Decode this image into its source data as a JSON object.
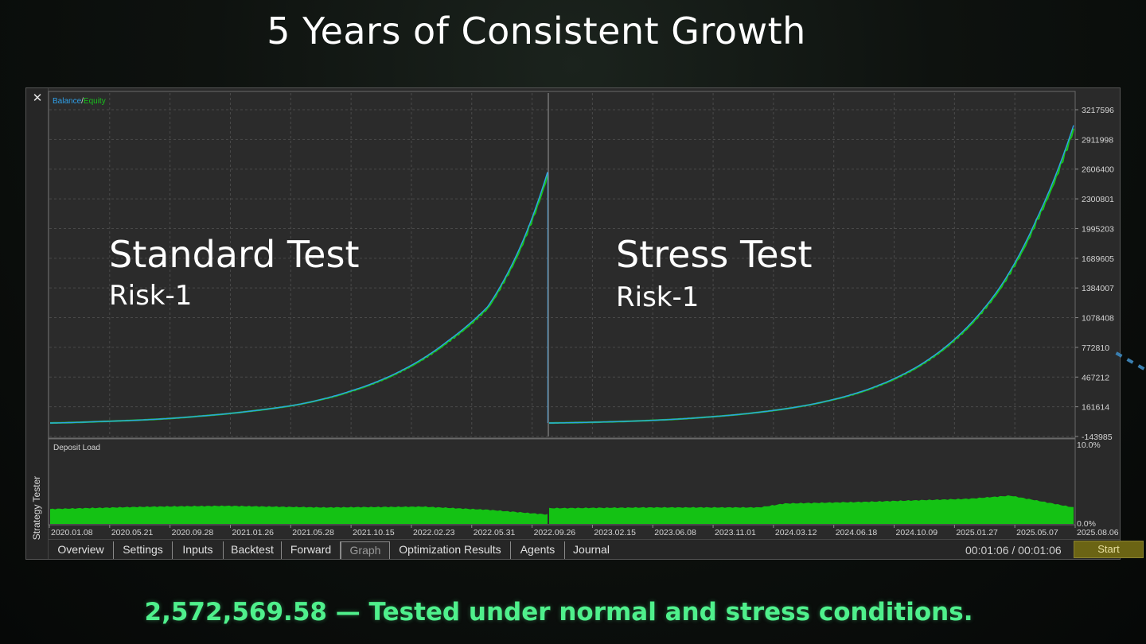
{
  "title": "5 Years of Consistent Growth",
  "footer": "2,572,569.58 — Tested under normal and stress conditions.",
  "window": {
    "side_label": "Strategy Tester",
    "close_icon": "close-icon"
  },
  "chart_data": {
    "type": "line",
    "legend": {
      "balance": "Balance",
      "separator": "/",
      "equity": "Equity"
    },
    "colors": {
      "balance": "#2f9fe8",
      "equity": "#19c11c",
      "background": "#2b2b2b",
      "grid": "#555555",
      "text": "#d4d4d4"
    },
    "panels": [
      {
        "title": "Standard Test",
        "subtitle": "Risk-1",
        "points": [
          [
            0,
            10000
          ],
          [
            0.1,
            25000
          ],
          [
            0.2,
            45000
          ],
          [
            0.3,
            80000
          ],
          [
            0.4,
            130000
          ],
          [
            0.5,
            200000
          ],
          [
            0.6,
            330000
          ],
          [
            0.7,
            530000
          ],
          [
            0.8,
            850000
          ],
          [
            0.88,
            1200000
          ],
          [
            0.94,
            1750000
          ],
          [
            1.0,
            2572569.58
          ]
        ]
      },
      {
        "title": "Stress Test",
        "subtitle": "Risk-1",
        "points": [
          [
            0,
            10000
          ],
          [
            0.1,
            20000
          ],
          [
            0.2,
            38000
          ],
          [
            0.3,
            70000
          ],
          [
            0.4,
            120000
          ],
          [
            0.5,
            200000
          ],
          [
            0.6,
            340000
          ],
          [
            0.7,
            580000
          ],
          [
            0.78,
            900000
          ],
          [
            0.86,
            1400000
          ],
          [
            0.93,
            2100000
          ],
          [
            1.0,
            3050000
          ]
        ]
      }
    ],
    "y_ticks": [
      "3217596",
      "2911998",
      "2606400",
      "2300801",
      "1995203",
      "1689605",
      "1384007",
      "1078408",
      "772810",
      "467212",
      "161614",
      "-143985"
    ],
    "y_range": [
      -143985,
      3217596
    ],
    "x_ticks": [
      "2020.01.08",
      "2020.05.21",
      "2020.09.28",
      "2021.01.26",
      "2021.05.28",
      "2021.10.15",
      "2022.02.23",
      "2022.05.31",
      "2022.09.26",
      "2023.02.15",
      "2023.06.08",
      "2023.11.01",
      "2024.03.12",
      "2024.06.18",
      "2024.10.09",
      "2025.01.27",
      "2025.05.07",
      "2025.08.06"
    ],
    "deposit_load": {
      "label": "Deposit Load",
      "y_ticks": [
        "10.0%",
        "0.0%"
      ],
      "y_range": [
        0,
        10
      ],
      "series": [
        {
          "name": "Standard Test",
          "points": [
            [
              0,
              1.9
            ],
            [
              0.2,
              2.2
            ],
            [
              0.35,
              2.3
            ],
            [
              0.55,
              2.1
            ],
            [
              0.75,
              2.2
            ],
            [
              0.88,
              1.8
            ],
            [
              1.0,
              1.2
            ]
          ]
        },
        {
          "name": "Stress Test",
          "points": [
            [
              0,
              2.0
            ],
            [
              0.2,
              2.1
            ],
            [
              0.4,
              2.1
            ],
            [
              0.45,
              2.6
            ],
            [
              0.6,
              2.8
            ],
            [
              0.8,
              3.2
            ],
            [
              0.88,
              3.6
            ],
            [
              1.0,
              2.1
            ]
          ]
        }
      ]
    }
  },
  "tabs": [
    {
      "label": "Overview"
    },
    {
      "label": "Settings"
    },
    {
      "label": "Inputs"
    },
    {
      "label": "Backtest"
    },
    {
      "label": "Forward"
    },
    {
      "label": "Graph",
      "active": true
    },
    {
      "label": "Optimization Results"
    },
    {
      "label": "Agents"
    },
    {
      "label": "Journal"
    }
  ],
  "timer": "00:01:06 / 00:01:06",
  "start_label": "Start"
}
